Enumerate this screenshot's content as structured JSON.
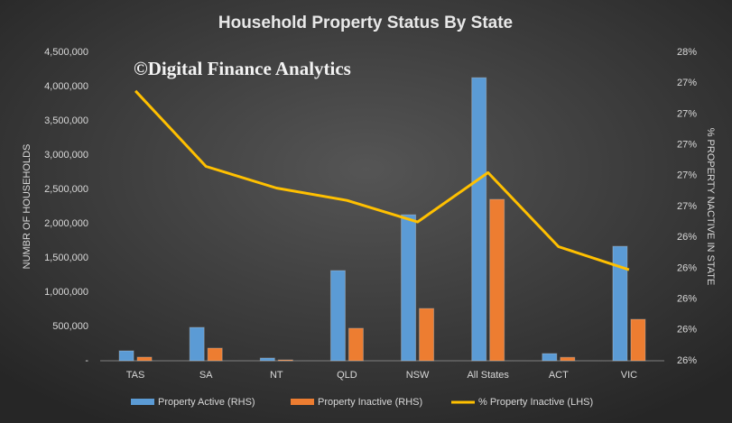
{
  "chart_data": {
    "type": "bar_line",
    "title": "Household Property Status By State",
    "watermark": "©Digital Finance Analytics",
    "y_label": "NUMBR OF HOUSEHOLDS",
    "y2_label": "% PROPERTY NACTIVE IN STATE",
    "categories": [
      "TAS",
      "SA",
      "NT",
      "QLD",
      "NSW",
      "All States",
      "ACT",
      "VIC"
    ],
    "series": [
      {
        "name": "Property Active (RHS)",
        "type": "bar",
        "color": "#5b9bd5",
        "values": [
          145000,
          487000,
          40000,
          1316000,
          2130000,
          4130000,
          105000,
          1670000
        ]
      },
      {
        "name": "Property Inactive (RHS)",
        "type": "bar",
        "color": "#ed7d31",
        "values": [
          53000,
          184000,
          13000,
          474000,
          763000,
          2355000,
          50000,
          605000
        ]
      },
      {
        "name": "% Property Inactive (LHS)",
        "type": "line",
        "axis": "y2",
        "color": "#ffc000",
        "values": [
          27.25,
          26.76,
          26.62,
          26.54,
          26.4,
          26.72,
          26.24,
          26.09
        ]
      }
    ],
    "ylim": [
      0,
      4500000
    ],
    "yticks": [
      {
        "value": 0,
        "label": "-"
      },
      {
        "value": 500000,
        "label": "500,000"
      },
      {
        "value": 1000000,
        "label": "1,000,000"
      },
      {
        "value": 1500000,
        "label": "1,500,000"
      },
      {
        "value": 2000000,
        "label": "2,000,000"
      },
      {
        "value": 2500000,
        "label": "2,500,000"
      },
      {
        "value": 3000000,
        "label": "3,000,000"
      },
      {
        "value": 3500000,
        "label": "3,500,000"
      },
      {
        "value": 4000000,
        "label": "4,000,000"
      },
      {
        "value": 4500000,
        "label": "4,500,000"
      }
    ],
    "y2lim": [
      25.5,
      27.5
    ],
    "y2ticks": [
      {
        "value": 25.5,
        "label": "26%"
      },
      {
        "value": 25.7,
        "label": "26%"
      },
      {
        "value": 25.9,
        "label": "26%"
      },
      {
        "value": 26.1,
        "label": "26%"
      },
      {
        "value": 26.3,
        "label": "26%"
      },
      {
        "value": 26.5,
        "label": "27%"
      },
      {
        "value": 26.7,
        "label": "27%"
      },
      {
        "value": 26.9,
        "label": "27%"
      },
      {
        "value": 27.1,
        "label": "27%"
      },
      {
        "value": 27.3,
        "label": "27%"
      },
      {
        "value": 27.5,
        "label": "28%"
      }
    ]
  }
}
